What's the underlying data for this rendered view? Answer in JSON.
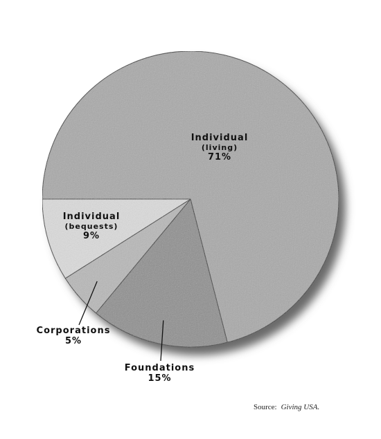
{
  "chart_data": {
    "type": "pie",
    "title": "",
    "slices": [
      {
        "label": "Individual",
        "sublabel": "(living)",
        "value": 71,
        "value_label": "71%",
        "color": "#a9a9a9"
      },
      {
        "label": "Foundations",
        "sublabel": "",
        "value": 15,
        "value_label": "15%",
        "color": "#8e8e8e"
      },
      {
        "label": "Corporations",
        "sublabel": "",
        "value": 5,
        "value_label": "5%",
        "color": "#b8b8b8"
      },
      {
        "label": "Individual",
        "sublabel": "(bequests)",
        "value": 9,
        "value_label": "9%",
        "color": "#dcdcdc"
      }
    ],
    "start_angle_deg": 180,
    "direction": "clockwise",
    "legend": "none"
  },
  "source": {
    "prefix": "Source:",
    "name": "Giving USA."
  }
}
